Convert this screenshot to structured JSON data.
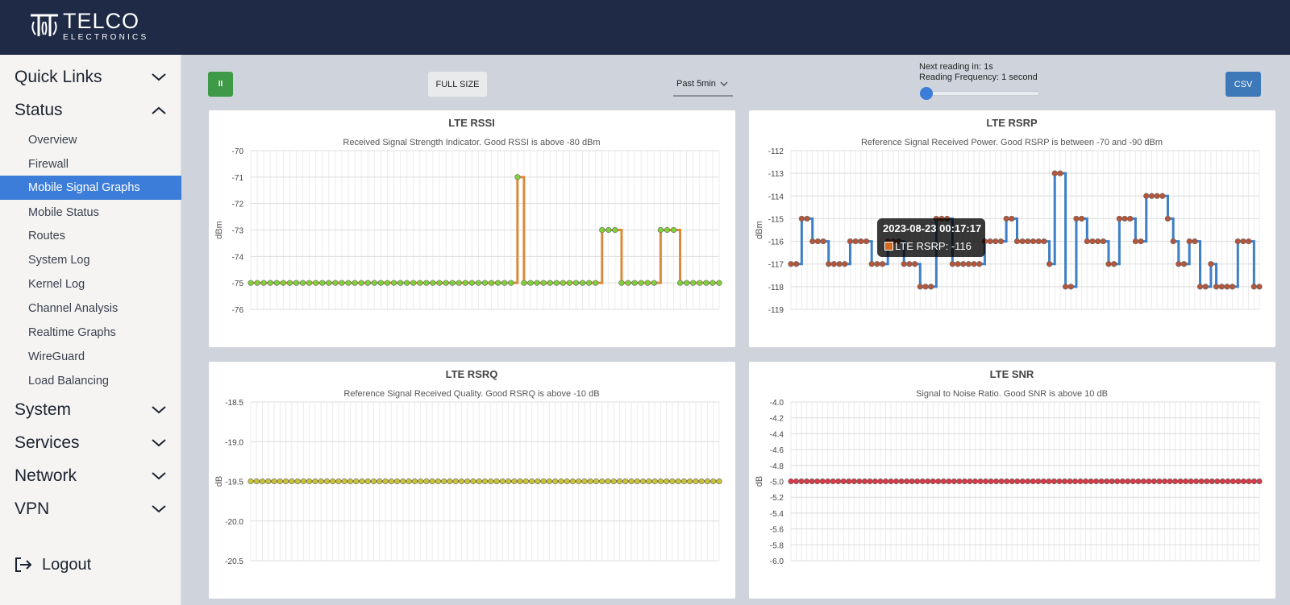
{
  "brand": {
    "name": "TELCO",
    "sub": "ELECTRONICS"
  },
  "nav": {
    "quick_links": "Quick Links",
    "status": "Status",
    "status_items": [
      "Overview",
      "Firewall",
      "Mobile Signal Graphs",
      "Mobile Status",
      "Routes",
      "System Log",
      "Kernel Log",
      "Channel Analysis",
      "Realtime Graphs",
      "WireGuard",
      "Load Balancing"
    ],
    "active_item": "Mobile Signal Graphs",
    "system": "System",
    "services": "Services",
    "network": "Network",
    "vpn": "VPN",
    "logout": "Logout"
  },
  "toolbar": {
    "pause_label": "II",
    "full_size_label": "FULL SIZE",
    "range_value": "Past 5min",
    "next_reading": "Next reading in: 1s",
    "frequency": "Reading Frequency: 1 second",
    "frequency_slider_position": 0,
    "csv_label": "CSV"
  },
  "tooltip": {
    "title": "2023-08-23 00:17:17",
    "label": "LTE RSRP: -116"
  },
  "colors": {
    "header": "#1e2a46",
    "active_nav": "#3b7dd8",
    "pause_btn": "#3e9a47",
    "csv_btn": "#3d78b8"
  },
  "chart_data": [
    {
      "type": "line",
      "step": true,
      "title": "LTE RSSI",
      "subtitle": "Received Signal Strength Indicator. Good RSSI is above -80 dBm",
      "ylabel": "dBm",
      "ylim": [
        -76,
        -70
      ],
      "yticks": [
        -70,
        -71,
        -72,
        -73,
        -74,
        -75,
        -76
      ],
      "line_color": "#d98a3a",
      "point_color": "#7fd13b",
      "series": [
        {
          "values": [
            -75,
            -75,
            -75,
            -75,
            -75,
            -75,
            -75,
            -75,
            -75,
            -75,
            -75,
            -75,
            -75,
            -75,
            -75,
            -75,
            -75,
            -75,
            -75,
            -75,
            -75,
            -75,
            -75,
            -75,
            -75,
            -75,
            -75,
            -75,
            -75,
            -75,
            -75,
            -75,
            -75,
            -75,
            -75,
            -75,
            -75,
            -75,
            -75,
            -75,
            -75,
            -71,
            -75,
            -75,
            -75,
            -75,
            -75,
            -75,
            -75,
            -75,
            -75,
            -75,
            -75,
            -75,
            -73,
            -73,
            -73,
            -75,
            -75,
            -75,
            -75,
            -75,
            -75,
            -73,
            -73,
            -73,
            -75,
            -75,
            -75,
            -75,
            -75,
            -75,
            -75
          ]
        }
      ]
    },
    {
      "type": "line",
      "step": true,
      "title": "LTE RSRP",
      "subtitle": "Reference Signal Received Power. Good RSRP is between -70 and -90 dBm",
      "ylabel": "dBm",
      "ylim": [
        -119,
        -112
      ],
      "yticks": [
        -112,
        -113,
        -114,
        -115,
        -116,
        -117,
        -118,
        -119
      ],
      "line_color": "#3d7fc6",
      "point_color": "#b5553a",
      "series": [
        {
          "values": [
            -117,
            -117,
            -115,
            -115,
            -116,
            -116,
            -116,
            -117,
            -117,
            -117,
            -117,
            -116,
            -116,
            -116,
            -116,
            -117,
            -117,
            -117,
            -116,
            -116,
            -116,
            -117,
            -117,
            -117,
            -118,
            -118,
            -118,
            -115,
            -115,
            -115,
            -117,
            -117,
            -117,
            -117,
            -117,
            -117,
            -116,
            -116,
            -116,
            -116,
            -115,
            -115,
            -116,
            -116,
            -116,
            -116,
            -116,
            -116,
            -117,
            -113,
            -113,
            -118,
            -118,
            -115,
            -115,
            -116,
            -116,
            -116,
            -116,
            -117,
            -117,
            -115,
            -115,
            -115,
            -116,
            -116,
            -114,
            -114,
            -114,
            -114,
            -115,
            -116,
            -117,
            -117,
            -116,
            -116,
            -118,
            -118,
            -117,
            -118,
            -118,
            -118,
            -118,
            -116,
            -116,
            -116,
            -118,
            -118
          ]
        }
      ]
    },
    {
      "type": "line",
      "step": true,
      "title": "LTE RSRQ",
      "subtitle": "Reference Signal Received Quality. Good RSRQ is above -10 dB",
      "ylabel": "dB",
      "ylim": [
        -20.5,
        -18.5
      ],
      "yticks": [
        "-18.5",
        "-19.0",
        "-19.5",
        "-20.0",
        "-20.5"
      ],
      "line_color": "#9a9a2e",
      "point_color": "#c9c33a",
      "series": [
        {
          "values": [
            -19.5,
            -19.5,
            -19.5,
            -19.5,
            -19.5,
            -19.5,
            -19.5,
            -19.5,
            -19.5,
            -19.5,
            -19.5,
            -19.5,
            -19.5,
            -19.5,
            -19.5,
            -19.5,
            -19.5,
            -19.5,
            -19.5,
            -19.5,
            -19.5,
            -19.5,
            -19.5,
            -19.5,
            -19.5,
            -19.5,
            -19.5,
            -19.5,
            -19.5,
            -19.5,
            -19.5,
            -19.5,
            -19.5,
            -19.5,
            -19.5,
            -19.5,
            -19.5,
            -19.5,
            -19.5,
            -19.5,
            -19.5,
            -19.5,
            -19.5,
            -19.5,
            -19.5,
            -19.5,
            -19.5,
            -19.5,
            -19.5,
            -19.5,
            -19.5,
            -19.5,
            -19.5,
            -19.5,
            -19.5,
            -19.5,
            -19.5,
            -19.5,
            -19.5,
            -19.5,
            -19.5,
            -19.5,
            -19.5,
            -19.5,
            -19.5,
            -19.5,
            -19.5,
            -19.5,
            -19.5,
            -19.5,
            -19.5,
            -19.5,
            -19.5,
            -19.5,
            -19.5,
            -19.5,
            -19.5,
            -19.5,
            -19.5,
            -19.5,
            -19.5
          ]
        }
      ]
    },
    {
      "type": "line",
      "step": true,
      "title": "LTE SNR",
      "subtitle": "Signal to Noise Ratio. Good SNR is above 10 dB",
      "ylabel": "dB",
      "ylim": [
        -6.0,
        -4.0
      ],
      "yticks": [
        "-4.0",
        "-4.2",
        "-4.4",
        "-4.6",
        "-4.8",
        "-5.0",
        "-5.2",
        "-5.4",
        "-5.6",
        "-5.8",
        "-6.0"
      ],
      "line_color": "#d6303a",
      "point_color": "#d63a48",
      "series": [
        {
          "values": [
            -5,
            -5,
            -5,
            -5,
            -5,
            -5,
            -5,
            -5,
            -5,
            -5,
            -5,
            -5,
            -5,
            -5,
            -5,
            -5,
            -5,
            -5,
            -5,
            -5,
            -5,
            -5,
            -5,
            -5,
            -5,
            -5,
            -5,
            -5,
            -5,
            -5,
            -5,
            -5,
            -5,
            -5,
            -5,
            -5,
            -5,
            -5,
            -5,
            -5,
            -5,
            -5,
            -5,
            -5,
            -5,
            -5,
            -5,
            -5,
            -5,
            -5,
            -5,
            -5,
            -5,
            -5,
            -5,
            -5,
            -5,
            -5,
            -5,
            -5,
            -5,
            -5,
            -5,
            -5,
            -5,
            -5,
            -5,
            -5,
            -5,
            -5,
            -5,
            -5,
            -5,
            -5,
            -5,
            -5,
            -5,
            -5,
            -5,
            -5,
            -5,
            -5,
            -5,
            -5,
            -5,
            -5,
            -5,
            -5,
            -5,
            -5
          ]
        }
      ]
    }
  ]
}
